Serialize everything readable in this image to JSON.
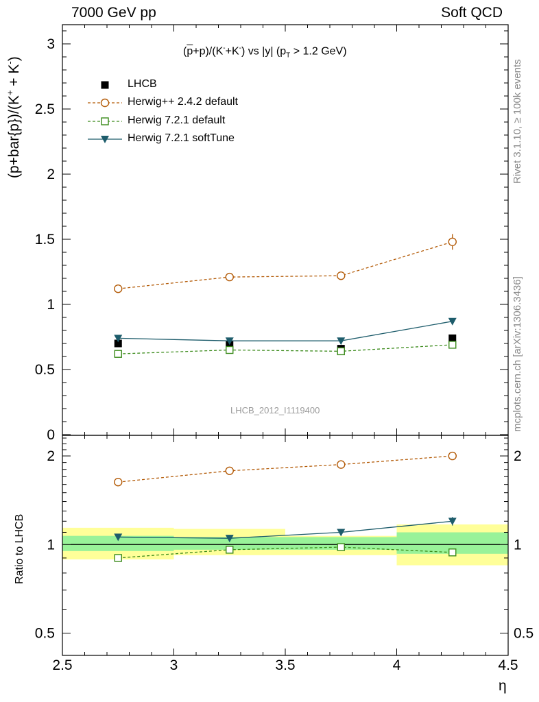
{
  "header": {
    "left": "7000 GeV pp",
    "right": "Soft QCD"
  },
  "side_labels": {
    "rivet": "Rivet 3.1.10, ≥ 100k events",
    "mcplots": "mcplots.cern.ch [arXiv:1306.3436]"
  },
  "analysis_id": "LHCB_2012_I1119400",
  "colors": {
    "data": "#000000",
    "herwig_pp": "#b35a06",
    "herwig_default": "#3a8a1a",
    "herwig_softtune": "#1d5c6b",
    "band_inner": "#99f299",
    "band_outer": "#ffff99"
  },
  "chart_data": [
    {
      "type": "line",
      "title": "(p̅+p)/(K⁻+K⁻) vs |y| (p_T > 1.2 GeV)",
      "ylabel": "(p+bar{p})/(K⁺ + K⁻)",
      "xlim": [
        2.5,
        4.5
      ],
      "ylim": [
        0,
        3.15
      ],
      "yticks": [
        "0",
        "0.5",
        "1",
        "1.5",
        "2",
        "2.5",
        "3"
      ],
      "legend_position": "top-left",
      "x": [
        2.75,
        3.25,
        3.75,
        4.25
      ],
      "series": [
        {
          "name": "LHCB",
          "style": "data",
          "marker": "square-filled",
          "values": [
            0.7,
            0.69,
            0.66,
            0.74
          ]
        },
        {
          "name": "Herwig++ 2.4.2 default",
          "style": "dashed",
          "marker": "circle-open",
          "values": [
            1.12,
            1.21,
            1.22,
            1.48
          ],
          "errors": [
            0.03,
            0.03,
            0.03,
            0.06
          ]
        },
        {
          "name": "Herwig 7.2.1 default",
          "style": "dashed",
          "marker": "square-open",
          "values": [
            0.62,
            0.65,
            0.64,
            0.69
          ],
          "errors": [
            0.01,
            0.01,
            0.01,
            0.02
          ]
        },
        {
          "name": "Herwig 7.2.1 softTune",
          "style": "solid",
          "marker": "triangle-down-filled",
          "values": [
            0.74,
            0.72,
            0.72,
            0.87
          ],
          "errors": [
            0.01,
            0.01,
            0.01,
            0.02
          ]
        }
      ]
    },
    {
      "type": "line",
      "ylabel": "Ratio to LHCB",
      "xlabel": "η",
      "log_y": true,
      "ylim": [
        0.42,
        2.35
      ],
      "yticks": [
        "0.5",
        "1",
        "2"
      ],
      "xticks": [
        "2.5",
        "3",
        "3.5",
        "4",
        "4.5"
      ],
      "x": [
        2.75,
        3.25,
        3.75,
        4.25
      ],
      "bins": [
        [
          2.5,
          3.0
        ],
        [
          3.0,
          3.5
        ],
        [
          3.5,
          4.0
        ],
        [
          4.0,
          4.5
        ]
      ],
      "band_inner": [
        [
          0.95,
          1.07
        ],
        [
          0.96,
          1.06
        ],
        [
          0.96,
          1.06
        ],
        [
          0.93,
          1.1
        ]
      ],
      "band_outer": [
        [
          0.89,
          1.14
        ],
        [
          0.92,
          1.13
        ],
        [
          0.92,
          1.07
        ],
        [
          0.85,
          1.17
        ]
      ],
      "series": [
        {
          "name": "Herwig++ 2.4.2 default",
          "values": [
            1.63,
            1.78,
            1.87,
            2.0
          ],
          "errors": [
            0.03,
            0.03,
            0.03,
            0.05
          ]
        },
        {
          "name": "Herwig 7.2.1 default",
          "values": [
            0.9,
            0.96,
            0.98,
            0.94
          ],
          "errors": [
            0.01,
            0.01,
            0.02,
            0.02
          ]
        },
        {
          "name": "Herwig 7.2.1 softTune",
          "values": [
            1.06,
            1.05,
            1.1,
            1.2
          ],
          "errors": [
            0.02,
            0.02,
            0.02,
            0.04
          ]
        }
      ]
    }
  ]
}
